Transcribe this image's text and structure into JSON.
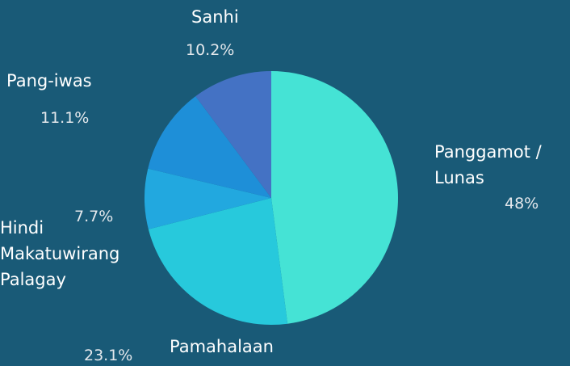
{
  "chart_data": {
    "type": "pie",
    "categories": [
      "Panggamot / Lunas",
      "Pamahalaan",
      "Hindi Makatuwirang Palagay",
      "Pang-iwas",
      "Sanhi"
    ],
    "values": [
      48,
      23.1,
      7.7,
      11.1,
      10.2
    ],
    "value_labels": [
      "48%",
      "23.1%",
      "7.7%",
      "11.1%",
      "10.2%"
    ],
    "colors": [
      "#45e3d5",
      "#27c9dc",
      "#22a8df",
      "#1e8fd8",
      "#4472c4"
    ]
  }
}
